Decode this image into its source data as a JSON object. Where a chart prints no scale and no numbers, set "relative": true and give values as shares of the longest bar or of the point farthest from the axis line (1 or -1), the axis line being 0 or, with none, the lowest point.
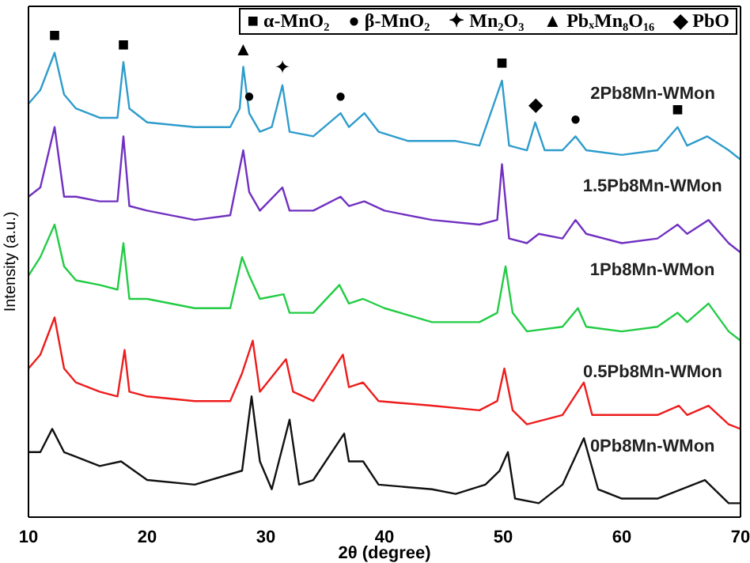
{
  "chart_data": {
    "type": "line",
    "xlabel": "2θ (degree)",
    "ylabel": "Intensity (a.u.)",
    "relative": true,
    "xlim": [
      10,
      70
    ],
    "xticks": [
      10,
      20,
      30,
      40,
      50,
      60,
      70
    ],
    "series": [
      {
        "name": "2Pb8Mn-WMon",
        "color": "#2e9ccc",
        "x": [
          10,
          11,
          12.2,
          13,
          14,
          16,
          17.5,
          18,
          18.5,
          20,
          24,
          27,
          27.8,
          28.1,
          28.6,
          29.5,
          30.5,
          31.4,
          32,
          34,
          36.3,
          37,
          38.3,
          39.5,
          42,
          46,
          48,
          49.9,
          50.5,
          52,
          52.7,
          53.5,
          55,
          56.1,
          57,
          60,
          63,
          64.7,
          65.5,
          67.2,
          69,
          70
        ],
        "values": [
          0.89,
          0.92,
          1.0,
          0.91,
          0.88,
          0.86,
          0.86,
          0.98,
          0.88,
          0.85,
          0.84,
          0.84,
          0.88,
          0.97,
          0.87,
          0.83,
          0.84,
          0.93,
          0.83,
          0.82,
          0.87,
          0.84,
          0.87,
          0.83,
          0.81,
          0.81,
          0.8,
          0.94,
          0.8,
          0.79,
          0.85,
          0.79,
          0.79,
          0.82,
          0.79,
          0.78,
          0.79,
          0.84,
          0.8,
          0.82,
          0.79,
          0.77
        ]
      },
      {
        "name": "1.5Pb8Mn-WMon",
        "color": "#7030c0",
        "x": [
          10,
          11,
          12.2,
          13,
          14,
          16,
          17.5,
          18,
          18.5,
          20,
          24,
          27,
          28.1,
          28.6,
          29.5,
          31.4,
          32,
          34,
          36.3,
          37,
          38.3,
          40,
          44,
          48,
          49.5,
          49.9,
          50.5,
          52,
          53,
          55,
          56.1,
          57,
          60,
          63,
          64.7,
          65.5,
          67.3,
          69,
          70
        ],
        "values": [
          0.69,
          0.71,
          0.84,
          0.69,
          0.69,
          0.68,
          0.68,
          0.82,
          0.67,
          0.66,
          0.64,
          0.65,
          0.79,
          0.7,
          0.66,
          0.71,
          0.66,
          0.66,
          0.69,
          0.67,
          0.68,
          0.66,
          0.64,
          0.63,
          0.64,
          0.76,
          0.6,
          0.59,
          0.61,
          0.6,
          0.64,
          0.61,
          0.59,
          0.6,
          0.63,
          0.61,
          0.64,
          0.59,
          0.57
        ]
      },
      {
        "name": "1Pb8Mn-WMon",
        "color": "#22cc44",
        "x": [
          10,
          11,
          12.2,
          13,
          14,
          16,
          17.5,
          18,
          18.5,
          20,
          24,
          27,
          28,
          28.6,
          29.5,
          31.5,
          32,
          34,
          36.2,
          37,
          38.2,
          40,
          44,
          48,
          49.5,
          50.2,
          50.8,
          52,
          55,
          56.3,
          57,
          60,
          63,
          64.7,
          65.5,
          67.3,
          69,
          70
        ],
        "values": [
          0.52,
          0.56,
          0.63,
          0.54,
          0.51,
          0.5,
          0.49,
          0.59,
          0.47,
          0.47,
          0.45,
          0.45,
          0.56,
          0.52,
          0.47,
          0.48,
          0.44,
          0.44,
          0.5,
          0.46,
          0.47,
          0.45,
          0.42,
          0.42,
          0.44,
          0.54,
          0.44,
          0.4,
          0.41,
          0.45,
          0.41,
          0.4,
          0.41,
          0.44,
          0.42,
          0.46,
          0.4,
          0.38
        ]
      },
      {
        "name": "0.5Pb8Mn-WMon",
        "color": "#ee1c1c",
        "x": [
          10,
          11,
          12.2,
          13,
          14,
          16,
          17.5,
          18.1,
          18.5,
          20,
          24,
          27,
          28,
          28.9,
          29.5,
          31.7,
          32.3,
          34,
          36.5,
          37,
          38.2,
          39.5,
          44,
          48,
          49.5,
          50.1,
          50.8,
          52,
          55,
          56.8,
          57.5,
          60,
          63,
          64.8,
          65.5,
          67.3,
          69,
          70
        ],
        "values": [
          0.32,
          0.35,
          0.43,
          0.32,
          0.29,
          0.27,
          0.26,
          0.36,
          0.27,
          0.26,
          0.25,
          0.25,
          0.31,
          0.38,
          0.27,
          0.34,
          0.27,
          0.25,
          0.35,
          0.28,
          0.29,
          0.25,
          0.24,
          0.23,
          0.25,
          0.32,
          0.23,
          0.2,
          0.22,
          0.29,
          0.22,
          0.22,
          0.22,
          0.24,
          0.22,
          0.24,
          0.2,
          0.19
        ]
      },
      {
        "name": "0Pb8Mn-WMon",
        "color": "#111111",
        "x": [
          10,
          11,
          12,
          13,
          14,
          16,
          17.8,
          20,
          24,
          28,
          28.8,
          29.5,
          30.5,
          32,
          32.8,
          34,
          36.6,
          37,
          38.2,
          39.5,
          44,
          46,
          48.5,
          49.7,
          50.4,
          51,
          53,
          55,
          56.8,
          58,
          60,
          63,
          67,
          69,
          70
        ],
        "values": [
          0.14,
          0.14,
          0.19,
          0.14,
          0.13,
          0.11,
          0.12,
          0.08,
          0.07,
          0.1,
          0.26,
          0.12,
          0.06,
          0.21,
          0.07,
          0.08,
          0.18,
          0.12,
          0.12,
          0.07,
          0.06,
          0.05,
          0.07,
          0.1,
          0.14,
          0.04,
          0.03,
          0.07,
          0.17,
          0.06,
          0.04,
          0.04,
          0.08,
          0.03,
          0.03
        ]
      }
    ],
    "annotations": [
      "■ α-MnO₂",
      "● β-MnO₂",
      "✦ Mn₂O₃",
      "▲ PbₓMn₈O₁₆",
      "◆ PbO",
      {
        "text": "■",
        "x": 12.2,
        "y": 1.0
      },
      {
        "text": "■",
        "x": 18,
        "y": 0.98
      },
      {
        "text": "▲",
        "x": 28.1,
        "y": 0.97
      },
      {
        "text": "●",
        "x": 28.6,
        "y": 0.87
      },
      {
        "text": "✦",
        "x": 31.4,
        "y": 0.93
      },
      {
        "text": "●",
        "x": 36.3,
        "y": 0.87
      },
      {
        "text": "■",
        "x": 49.9,
        "y": 0.94
      },
      {
        "text": "◆",
        "x": 52.7,
        "y": 0.85
      },
      {
        "text": "●",
        "x": 56.1,
        "y": 0.82
      },
      {
        "text": "■",
        "x": 64.7,
        "y": 0.84
      }
    ]
  }
}
